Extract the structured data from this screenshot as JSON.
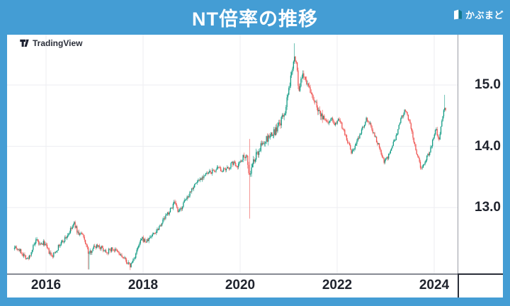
{
  "header": {
    "title": "NT倍率の推移"
  },
  "branding": {
    "kabumado_label": "かぶまど",
    "tradingview_label": "TradingView"
  },
  "colors": {
    "page_background": "#449dd4",
    "panel_background": "#ffffff",
    "up_candle": "#0f9a83",
    "down_candle": "#ef5350",
    "grid_line": "#edeef2",
    "axis_text": "#20242e"
  },
  "chart_data": {
    "type": "candlestick",
    "title": "NT倍率の推移",
    "xlabel": "",
    "ylabel": "",
    "grid": true,
    "legend_position": "none",
    "x_axis": {
      "ticks": [
        "2016",
        "2018",
        "2020",
        "2022",
        "2024"
      ],
      "tick_years": [
        2016,
        2018,
        2020,
        2022,
        2024
      ],
      "range_years": [
        2015.2,
        2024.5
      ]
    },
    "y_axis": {
      "ticks": [
        "15.0",
        "14.0",
        "13.0"
      ],
      "tick_values": [
        15.0,
        14.0,
        13.0
      ],
      "range": [
        11.9,
        15.85
      ]
    },
    "t_range": [
      2015.35,
      2024.25
    ],
    "points_note": "approximate NT-ratio values read from chart, [decimal_year, value]",
    "points": [
      [
        2015.35,
        12.38
      ],
      [
        2015.45,
        12.3
      ],
      [
        2015.55,
        12.22
      ],
      [
        2015.63,
        12.15
      ],
      [
        2015.72,
        12.33
      ],
      [
        2015.8,
        12.46
      ],
      [
        2015.88,
        12.38
      ],
      [
        2015.96,
        12.43
      ],
      [
        2016.04,
        12.3
      ],
      [
        2016.12,
        12.19
      ],
      [
        2016.22,
        12.32
      ],
      [
        2016.32,
        12.43
      ],
      [
        2016.42,
        12.52
      ],
      [
        2016.52,
        12.65
      ],
      [
        2016.58,
        12.74
      ],
      [
        2016.66,
        12.58
      ],
      [
        2016.74,
        12.56
      ],
      [
        2016.82,
        12.42
      ],
      [
        2016.88,
        12.23
      ],
      [
        2016.96,
        12.34
      ],
      [
        2017.06,
        12.39
      ],
      [
        2017.16,
        12.33
      ],
      [
        2017.26,
        12.28
      ],
      [
        2017.36,
        12.33
      ],
      [
        2017.46,
        12.28
      ],
      [
        2017.56,
        12.2
      ],
      [
        2017.66,
        12.12
      ],
      [
        2017.73,
        12.04
      ],
      [
        2017.81,
        12.16
      ],
      [
        2017.89,
        12.33
      ],
      [
        2017.97,
        12.49
      ],
      [
        2018.07,
        12.44
      ],
      [
        2018.17,
        12.54
      ],
      [
        2018.27,
        12.62
      ],
      [
        2018.37,
        12.74
      ],
      [
        2018.47,
        12.86
      ],
      [
        2018.57,
        12.97
      ],
      [
        2018.64,
        13.08
      ],
      [
        2018.73,
        12.91
      ],
      [
        2018.83,
        13.06
      ],
      [
        2018.93,
        13.2
      ],
      [
        2019.02,
        13.33
      ],
      [
        2019.12,
        13.43
      ],
      [
        2019.25,
        13.52
      ],
      [
        2019.4,
        13.58
      ],
      [
        2019.55,
        13.63
      ],
      [
        2019.7,
        13.6
      ],
      [
        2019.85,
        13.73
      ],
      [
        2019.95,
        13.69
      ],
      [
        2020.05,
        13.81
      ],
      [
        2020.13,
        13.89
      ],
      [
        2020.19,
        13.5
      ],
      [
        2020.27,
        13.74
      ],
      [
        2020.38,
        13.93
      ],
      [
        2020.5,
        14.08
      ],
      [
        2020.62,
        14.16
      ],
      [
        2020.72,
        14.24
      ],
      [
        2020.82,
        14.37
      ],
      [
        2020.92,
        14.55
      ],
      [
        2021.0,
        14.88
      ],
      [
        2021.07,
        15.28
      ],
      [
        2021.12,
        15.52
      ],
      [
        2021.17,
        15.28
      ],
      [
        2021.21,
        14.88
      ],
      [
        2021.27,
        15.1
      ],
      [
        2021.33,
        15.17
      ],
      [
        2021.41,
        14.95
      ],
      [
        2021.5,
        14.8
      ],
      [
        2021.6,
        14.62
      ],
      [
        2021.7,
        14.48
      ],
      [
        2021.8,
        14.38
      ],
      [
        2021.88,
        14.46
      ],
      [
        2021.96,
        14.36
      ],
      [
        2022.03,
        14.48
      ],
      [
        2022.12,
        14.29
      ],
      [
        2022.21,
        14.09
      ],
      [
        2022.3,
        13.88
      ],
      [
        2022.4,
        14.06
      ],
      [
        2022.5,
        14.26
      ],
      [
        2022.6,
        14.46
      ],
      [
        2022.7,
        14.32
      ],
      [
        2022.8,
        14.12
      ],
      [
        2022.88,
        13.96
      ],
      [
        2022.96,
        13.76
      ],
      [
        2023.04,
        13.82
      ],
      [
        2023.13,
        13.99
      ],
      [
        2023.22,
        14.16
      ],
      [
        2023.32,
        14.46
      ],
      [
        2023.4,
        14.58
      ],
      [
        2023.48,
        14.42
      ],
      [
        2023.56,
        14.14
      ],
      [
        2023.64,
        13.89
      ],
      [
        2023.72,
        13.66
      ],
      [
        2023.8,
        13.73
      ],
      [
        2023.88,
        13.87
      ],
      [
        2023.96,
        14.06
      ],
      [
        2024.03,
        14.28
      ],
      [
        2024.1,
        14.13
      ],
      [
        2024.16,
        14.46
      ],
      [
        2024.22,
        14.66
      ],
      [
        2024.25,
        14.58
      ]
    ],
    "spikes": [
      {
        "t": 2016.88,
        "low": 11.99
      },
      {
        "t": 2017.73,
        "low": 11.98
      },
      {
        "t": 2020.19,
        "high": 14.12,
        "low": 12.82
      },
      {
        "t": 2021.12,
        "high": 15.68
      },
      {
        "t": 2024.22,
        "high": 14.84
      }
    ],
    "up_color": "#0f9a83",
    "down_color": "#ef5350"
  }
}
